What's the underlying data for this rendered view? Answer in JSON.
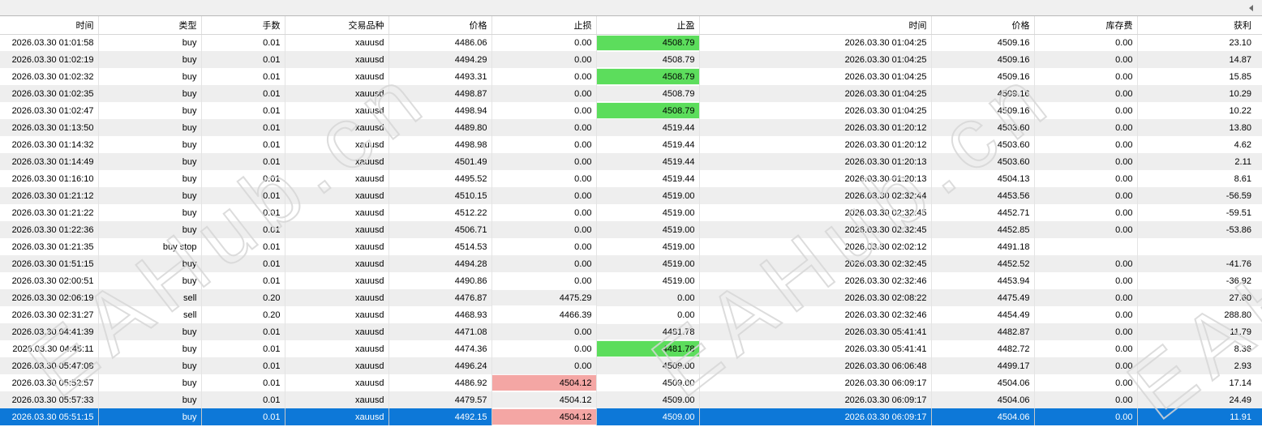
{
  "watermark": {
    "text": "EAHub.cn"
  },
  "colors": {
    "selection": "#0d78d8",
    "tp_highlight": "#5cdd5c",
    "sl_highlight": "#f4a6a4",
    "alt_row": "#eeeeee",
    "divider": "#e4e4e4"
  },
  "scrollbar": {
    "icon": "scroll-left-arrow"
  },
  "table": {
    "columns": [
      {
        "key": "open_time",
        "label": "时间"
      },
      {
        "key": "type",
        "label": "类型"
      },
      {
        "key": "lots",
        "label": "手数"
      },
      {
        "key": "symbol",
        "label": "交易品种"
      },
      {
        "key": "open_price",
        "label": "价格"
      },
      {
        "key": "sl",
        "label": "止损"
      },
      {
        "key": "tp",
        "label": "止盈"
      },
      {
        "key": "close_time",
        "label": "时间"
      },
      {
        "key": "close_price",
        "label": "价格"
      },
      {
        "key": "swap",
        "label": "库存费"
      },
      {
        "key": "profit",
        "label": "获利"
      }
    ],
    "rows": [
      {
        "open_time": "2026.03.30 01:01:58",
        "type": "buy",
        "lots": "0.01",
        "symbol": "xauusd",
        "open_price": "4486.06",
        "sl": "0.00",
        "tp": "4508.79",
        "close_time": "2026.03.30 01:04:25",
        "close_price": "4509.16",
        "swap": "0.00",
        "profit": "23.10",
        "tp_hl": true,
        "sl_hl": false,
        "selected": false
      },
      {
        "open_time": "2026.03.30 01:02:19",
        "type": "buy",
        "lots": "0.01",
        "symbol": "xauusd",
        "open_price": "4494.29",
        "sl": "0.00",
        "tp": "4508.79",
        "close_time": "2026.03.30 01:04:25",
        "close_price": "4509.16",
        "swap": "0.00",
        "profit": "14.87",
        "tp_hl": true,
        "sl_hl": false,
        "selected": false
      },
      {
        "open_time": "2026.03.30 01:02:32",
        "type": "buy",
        "lots": "0.01",
        "symbol": "xauusd",
        "open_price": "4493.31",
        "sl": "0.00",
        "tp": "4508.79",
        "close_time": "2026.03.30 01:04:25",
        "close_price": "4509.16",
        "swap": "0.00",
        "profit": "15.85",
        "tp_hl": true,
        "sl_hl": false,
        "selected": false
      },
      {
        "open_time": "2026.03.30 01:02:35",
        "type": "buy",
        "lots": "0.01",
        "symbol": "xauusd",
        "open_price": "4498.87",
        "sl": "0.00",
        "tp": "4508.79",
        "close_time": "2026.03.30 01:04:25",
        "close_price": "4509.16",
        "swap": "0.00",
        "profit": "10.29",
        "tp_hl": true,
        "sl_hl": false,
        "selected": false
      },
      {
        "open_time": "2026.03.30 01:02:47",
        "type": "buy",
        "lots": "0.01",
        "symbol": "xauusd",
        "open_price": "4498.94",
        "sl": "0.00",
        "tp": "4508.79",
        "close_time": "2026.03.30 01:04:25",
        "close_price": "4509.16",
        "swap": "0.00",
        "profit": "10.22",
        "tp_hl": true,
        "sl_hl": false,
        "selected": false
      },
      {
        "open_time": "2026.03.30 01:13:50",
        "type": "buy",
        "lots": "0.01",
        "symbol": "xauusd",
        "open_price": "4489.80",
        "sl": "0.00",
        "tp": "4519.44",
        "close_time": "2026.03.30 01:20:12",
        "close_price": "4503.60",
        "swap": "0.00",
        "profit": "13.80",
        "tp_hl": false,
        "sl_hl": false,
        "selected": false
      },
      {
        "open_time": "2026.03.30 01:14:32",
        "type": "buy",
        "lots": "0.01",
        "symbol": "xauusd",
        "open_price": "4498.98",
        "sl": "0.00",
        "tp": "4519.44",
        "close_time": "2026.03.30 01:20:12",
        "close_price": "4503.60",
        "swap": "0.00",
        "profit": "4.62",
        "tp_hl": false,
        "sl_hl": false,
        "selected": false
      },
      {
        "open_time": "2026.03.30 01:14:49",
        "type": "buy",
        "lots": "0.01",
        "symbol": "xauusd",
        "open_price": "4501.49",
        "sl": "0.00",
        "tp": "4519.44",
        "close_time": "2026.03.30 01:20:13",
        "close_price": "4503.60",
        "swap": "0.00",
        "profit": "2.11",
        "tp_hl": false,
        "sl_hl": false,
        "selected": false
      },
      {
        "open_time": "2026.03.30 01:16:10",
        "type": "buy",
        "lots": "0.01",
        "symbol": "xauusd",
        "open_price": "4495.52",
        "sl": "0.00",
        "tp": "4519.44",
        "close_time": "2026.03.30 01:20:13",
        "close_price": "4504.13",
        "swap": "0.00",
        "profit": "8.61",
        "tp_hl": false,
        "sl_hl": false,
        "selected": false
      },
      {
        "open_time": "2026.03.30 01:21:12",
        "type": "buy",
        "lots": "0.01",
        "symbol": "xauusd",
        "open_price": "4510.15",
        "sl": "0.00",
        "tp": "4519.00",
        "close_time": "2026.03.30 02:32:44",
        "close_price": "4453.56",
        "swap": "0.00",
        "profit": "-56.59",
        "tp_hl": false,
        "sl_hl": false,
        "selected": false
      },
      {
        "open_time": "2026.03.30 01:21:22",
        "type": "buy",
        "lots": "0.01",
        "symbol": "xauusd",
        "open_price": "4512.22",
        "sl": "0.00",
        "tp": "4519.00",
        "close_time": "2026.03.30 02:32:45",
        "close_price": "4452.71",
        "swap": "0.00",
        "profit": "-59.51",
        "tp_hl": false,
        "sl_hl": false,
        "selected": false
      },
      {
        "open_time": "2026.03.30 01:22:36",
        "type": "buy",
        "lots": "0.01",
        "symbol": "xauusd",
        "open_price": "4506.71",
        "sl": "0.00",
        "tp": "4519.00",
        "close_time": "2026.03.30 02:32:45",
        "close_price": "4452.85",
        "swap": "0.00",
        "profit": "-53.86",
        "tp_hl": false,
        "sl_hl": false,
        "selected": false
      },
      {
        "open_time": "2026.03.30 01:21:35",
        "type": "buy stop",
        "lots": "0.01",
        "symbol": "xauusd",
        "open_price": "4514.53",
        "sl": "0.00",
        "tp": "4519.00",
        "close_time": "2026.03.30 02:02:12",
        "close_price": "4491.18",
        "swap": "",
        "profit": "",
        "tp_hl": false,
        "sl_hl": false,
        "selected": false
      },
      {
        "open_time": "2026.03.30 01:51:15",
        "type": "buy",
        "lots": "0.01",
        "symbol": "xauusd",
        "open_price": "4494.28",
        "sl": "0.00",
        "tp": "4519.00",
        "close_time": "2026.03.30 02:32:45",
        "close_price": "4452.52",
        "swap": "0.00",
        "profit": "-41.76",
        "tp_hl": false,
        "sl_hl": false,
        "selected": false
      },
      {
        "open_time": "2026.03.30 02:00:51",
        "type": "buy",
        "lots": "0.01",
        "symbol": "xauusd",
        "open_price": "4490.86",
        "sl": "0.00",
        "tp": "4519.00",
        "close_time": "2026.03.30 02:32:46",
        "close_price": "4453.94",
        "swap": "0.00",
        "profit": "-36.92",
        "tp_hl": false,
        "sl_hl": false,
        "selected": false
      },
      {
        "open_time": "2026.03.30 02:06:19",
        "type": "sell",
        "lots": "0.20",
        "symbol": "xauusd",
        "open_price": "4476.87",
        "sl": "4475.29",
        "tp": "0.00",
        "close_time": "2026.03.30 02:08:22",
        "close_price": "4475.49",
        "swap": "0.00",
        "profit": "27.60",
        "tp_hl": false,
        "sl_hl": true,
        "selected": false
      },
      {
        "open_time": "2026.03.30 02:31:27",
        "type": "sell",
        "lots": "0.20",
        "symbol": "xauusd",
        "open_price": "4468.93",
        "sl": "4466.39",
        "tp": "0.00",
        "close_time": "2026.03.30 02:32:46",
        "close_price": "4454.49",
        "swap": "0.00",
        "profit": "288.80",
        "tp_hl": false,
        "sl_hl": false,
        "selected": false
      },
      {
        "open_time": "2026.03.30 04:41:39",
        "type": "buy",
        "lots": "0.01",
        "symbol": "xauusd",
        "open_price": "4471.08",
        "sl": "0.00",
        "tp": "4481.78",
        "close_time": "2026.03.30 05:41:41",
        "close_price": "4482.87",
        "swap": "0.00",
        "profit": "11.79",
        "tp_hl": true,
        "sl_hl": false,
        "selected": false
      },
      {
        "open_time": "2026.03.30 04:45:11",
        "type": "buy",
        "lots": "0.01",
        "symbol": "xauusd",
        "open_price": "4474.36",
        "sl": "0.00",
        "tp": "4481.78",
        "close_time": "2026.03.30 05:41:41",
        "close_price": "4482.72",
        "swap": "0.00",
        "profit": "8.36",
        "tp_hl": true,
        "sl_hl": false,
        "selected": false
      },
      {
        "open_time": "2026.03.30 05:47:08",
        "type": "buy",
        "lots": "0.01",
        "symbol": "xauusd",
        "open_price": "4496.24",
        "sl": "0.00",
        "tp": "4509.00",
        "close_time": "2026.03.30 06:06:48",
        "close_price": "4499.17",
        "swap": "0.00",
        "profit": "2.93",
        "tp_hl": false,
        "sl_hl": false,
        "selected": false
      },
      {
        "open_time": "2026.03.30 05:52:57",
        "type": "buy",
        "lots": "0.01",
        "symbol": "xauusd",
        "open_price": "4486.92",
        "sl": "4504.12",
        "tp": "4509.00",
        "close_time": "2026.03.30 06:09:17",
        "close_price": "4504.06",
        "swap": "0.00",
        "profit": "17.14",
        "tp_hl": false,
        "sl_hl": true,
        "selected": false
      },
      {
        "open_time": "2026.03.30 05:57:33",
        "type": "buy",
        "lots": "0.01",
        "symbol": "xauusd",
        "open_price": "4479.57",
        "sl": "4504.12",
        "tp": "4509.00",
        "close_time": "2026.03.30 06:09:17",
        "close_price": "4504.06",
        "swap": "0.00",
        "profit": "24.49",
        "tp_hl": false,
        "sl_hl": true,
        "selected": false
      },
      {
        "open_time": "2026.03.30 05:51:15",
        "type": "buy",
        "lots": "0.01",
        "symbol": "xauusd",
        "open_price": "4492.15",
        "sl": "4504.12",
        "tp": "4509.00",
        "close_time": "2026.03.30 06:09:17",
        "close_price": "4504.06",
        "swap": "0.00",
        "profit": "11.91",
        "tp_hl": false,
        "sl_hl": true,
        "selected": true
      }
    ]
  }
}
